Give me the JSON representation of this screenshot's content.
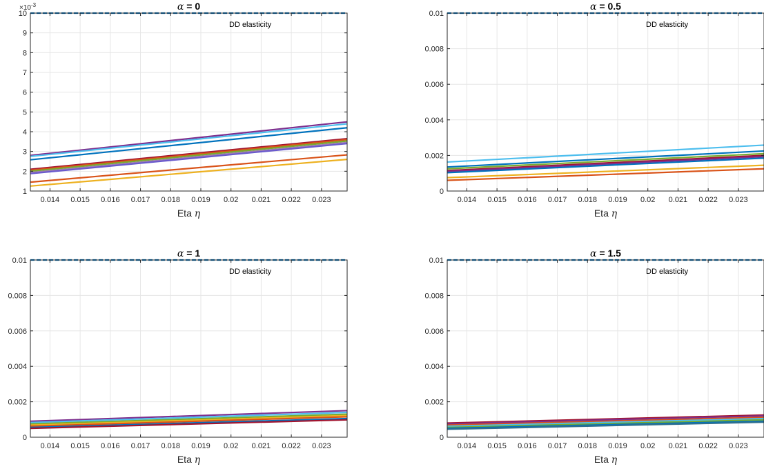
{
  "chart_data": [
    {
      "type": "line",
      "title_prefix": "α",
      "title_value": "0",
      "xlabel_text": "Eta",
      "xlabel_symbol": "η",
      "ylabel": "",
      "annotation": "DD elasticity",
      "y_exponent": "-3",
      "xlim": [
        0.01335,
        0.02385
      ],
      "ylim": [
        0.001,
        0.01
      ],
      "xticks": [
        0.014,
        0.015,
        0.016,
        0.017,
        0.018,
        0.019,
        0.02,
        0.021,
        0.022,
        0.023
      ],
      "xtick_labels": [
        "0.014",
        "0.015",
        "0.016",
        "0.017",
        "0.018",
        "0.019",
        "0.02",
        "0.021",
        "0.022",
        "0.023"
      ],
      "yticks": [
        0.001,
        0.002,
        0.003,
        0.004,
        0.005,
        0.006,
        0.007,
        0.008,
        0.009,
        0.01
      ],
      "ytick_labels": [
        "1",
        "2",
        "3",
        "4",
        "5",
        "6",
        "7",
        "8",
        "9",
        "10"
      ],
      "grid": true,
      "reference_line": {
        "y": 0.01,
        "style": "dashed",
        "color": "#0072BD"
      },
      "x": [
        0.01335,
        0.02385
      ],
      "series": [
        {
          "color": "#7E2F8E",
          "values": [
            0.0028,
            0.0045
          ]
        },
        {
          "color": "#4DBEEE",
          "values": [
            0.00275,
            0.0044
          ]
        },
        {
          "color": "#0072BD",
          "values": [
            0.00258,
            0.0042
          ]
        },
        {
          "color": "#A2142F",
          "values": [
            0.0021,
            0.00365
          ]
        },
        {
          "color": "#D95319",
          "values": [
            0.00205,
            0.0036
          ]
        },
        {
          "color": "#77AC30",
          "values": [
            0.002,
            0.00353
          ]
        },
        {
          "color": "#9E7BB5",
          "values": [
            0.00193,
            0.00345
          ]
        },
        {
          "color": "#6A5ACD",
          "values": [
            0.00188,
            0.0034
          ]
        },
        {
          "color": "#D95319",
          "values": [
            0.00145,
            0.00283
          ]
        },
        {
          "color": "#EDB120",
          "values": [
            0.00125,
            0.0026
          ]
        }
      ]
    },
    {
      "type": "line",
      "title_prefix": "α",
      "title_value": "0.5",
      "xlabel_text": "Eta",
      "xlabel_symbol": "η",
      "ylabel": "",
      "annotation": "DD elasticity",
      "y_exponent": "",
      "xlim": [
        0.01335,
        0.02385
      ],
      "ylim": [
        0,
        0.01
      ],
      "xticks": [
        0.014,
        0.015,
        0.016,
        0.017,
        0.018,
        0.019,
        0.02,
        0.021,
        0.022,
        0.023
      ],
      "xtick_labels": [
        "0.014",
        "0.015",
        "0.016",
        "0.017",
        "0.018",
        "0.019",
        "0.02",
        "0.021",
        "0.022",
        "0.023"
      ],
      "yticks": [
        0,
        0.002,
        0.004,
        0.006,
        0.008,
        0.01
      ],
      "ytick_labels": [
        "0",
        "0.002",
        "0.004",
        "0.006",
        "0.008",
        "0.01"
      ],
      "grid": true,
      "reference_line": {
        "y": 0.01,
        "style": "dashed",
        "color": "#0072BD"
      },
      "x": [
        0.01335,
        0.02385
      ],
      "series": [
        {
          "color": "#4DBEEE",
          "values": [
            0.00163,
            0.00258
          ]
        },
        {
          "color": "#0072BD",
          "values": [
            0.00135,
            0.00225
          ]
        },
        {
          "color": "#77AC30",
          "values": [
            0.00125,
            0.0021
          ]
        },
        {
          "color": "#A2142F",
          "values": [
            0.00115,
            0.002
          ]
        },
        {
          "color": "#7E2F8E",
          "values": [
            0.0011,
            0.00193
          ]
        },
        {
          "color": "#0072BD",
          "values": [
            0.00103,
            0.00185
          ]
        },
        {
          "color": "#EDB120",
          "values": [
            0.00075,
            0.00145
          ]
        },
        {
          "color": "#D95319",
          "values": [
            0.0006,
            0.00125
          ]
        }
      ]
    },
    {
      "type": "line",
      "title_prefix": "α",
      "title_value": "1",
      "xlabel_text": "Eta",
      "xlabel_symbol": "η",
      "ylabel": "",
      "annotation": "DD elasticity",
      "y_exponent": "",
      "xlim": [
        0.01335,
        0.02385
      ],
      "ylim": [
        0,
        0.01
      ],
      "xticks": [
        0.014,
        0.015,
        0.016,
        0.017,
        0.018,
        0.019,
        0.02,
        0.021,
        0.022,
        0.023
      ],
      "xtick_labels": [
        "0.014",
        "0.015",
        "0.016",
        "0.017",
        "0.018",
        "0.019",
        "0.02",
        "0.021",
        "0.022",
        "0.023"
      ],
      "yticks": [
        0,
        0.002,
        0.004,
        0.006,
        0.008,
        0.01
      ],
      "ytick_labels": [
        "0",
        "0.002",
        "0.004",
        "0.006",
        "0.008",
        "0.01"
      ],
      "grid": true,
      "reference_line": {
        "y": 0.01,
        "style": "dashed",
        "color": "#0072BD"
      },
      "x": [
        0.01335,
        0.02385
      ],
      "series": [
        {
          "color": "#7E2F8E",
          "values": [
            0.0009,
            0.0015
          ]
        },
        {
          "color": "#4DBEEE",
          "values": [
            0.00083,
            0.0014
          ]
        },
        {
          "color": "#77AC30",
          "values": [
            0.00075,
            0.0013
          ]
        },
        {
          "color": "#EDB120",
          "values": [
            0.00068,
            0.00122
          ]
        },
        {
          "color": "#D95319",
          "values": [
            0.00062,
            0.00115
          ]
        },
        {
          "color": "#0072BD",
          "values": [
            0.00055,
            0.00105
          ]
        },
        {
          "color": "#A2142F",
          "values": [
            0.0005,
            0.00098
          ]
        }
      ]
    },
    {
      "type": "line",
      "title_prefix": "α",
      "title_value": "1.5",
      "xlabel_text": "Eta",
      "xlabel_symbol": "η",
      "ylabel": "",
      "annotation": "DD elasticity",
      "y_exponent": "",
      "xlim": [
        0.01335,
        0.02385
      ],
      "ylim": [
        0,
        0.01
      ],
      "xticks": [
        0.014,
        0.015,
        0.016,
        0.017,
        0.018,
        0.019,
        0.02,
        0.021,
        0.022,
        0.023
      ],
      "xtick_labels": [
        "0.014",
        "0.015",
        "0.016",
        "0.017",
        "0.018",
        "0.019",
        "0.02",
        "0.021",
        "0.022",
        "0.023"
      ],
      "yticks": [
        0,
        0.002,
        0.004,
        0.006,
        0.008,
        0.01
      ],
      "ytick_labels": [
        "0",
        "0.002",
        "0.004",
        "0.006",
        "0.008",
        "0.01"
      ],
      "grid": true,
      "reference_line": {
        "y": 0.01,
        "style": "dashed",
        "color": "#0072BD"
      },
      "x": [
        0.01335,
        0.02385
      ],
      "series": [
        {
          "color": "#A2142F",
          "values": [
            0.0008,
            0.00125
          ]
        },
        {
          "color": "#7E2F8E",
          "values": [
            0.00075,
            0.0012
          ]
        },
        {
          "color": "#D95319",
          "values": [
            0.00068,
            0.00112
          ]
        },
        {
          "color": "#4DBEEE",
          "values": [
            0.00062,
            0.00105
          ]
        },
        {
          "color": "#77AC30",
          "values": [
            0.00055,
            0.00098
          ]
        },
        {
          "color": "#0072BD",
          "values": [
            0.0005,
            0.0009
          ]
        },
        {
          "color": "#2F6F8F",
          "values": [
            0.00045,
            0.00085
          ]
        }
      ]
    }
  ]
}
